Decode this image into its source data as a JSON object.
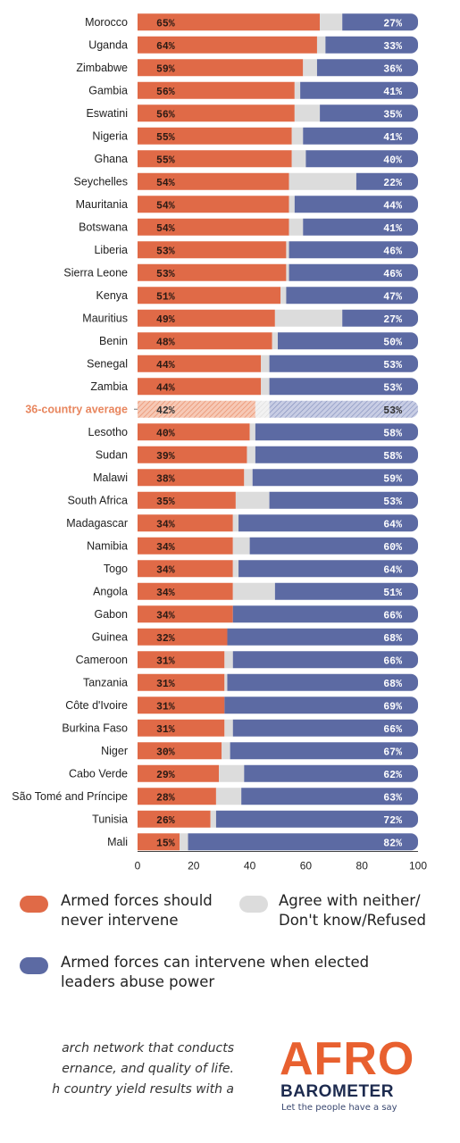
{
  "colors": {
    "never": "#e06a47",
    "neither": "#dcdcdc",
    "can": "#5c6aa3",
    "average_label": "#e8865e",
    "text": "#222222"
  },
  "chart_data": {
    "type": "bar",
    "orientation": "horizontal",
    "stacked": true,
    "xlim": [
      0,
      100
    ],
    "xticks": [
      0,
      20,
      40,
      60,
      80,
      100
    ],
    "categories": [
      "Morocco",
      "Uganda",
      "Zimbabwe",
      "Gambia",
      "Eswatini",
      "Nigeria",
      "Ghana",
      "Seychelles",
      "Mauritania",
      "Botswana",
      "Liberia",
      "Sierra Leone",
      "Kenya",
      "Mauritius",
      "Benin",
      "Senegal",
      "Zambia",
      "36-country average",
      "Lesotho",
      "Sudan",
      "Malawi",
      "South Africa",
      "Madagascar",
      "Namibia",
      "Togo",
      "Angola",
      "Gabon",
      "Guinea",
      "Cameroon",
      "Tanzania",
      "Côte d'Ivoire",
      "Burkina Faso",
      "Niger",
      "Cabo Verde",
      "São Tomé and Príncipe",
      "Tunisia",
      "Mali"
    ],
    "highlight_category": "36-country average",
    "series": [
      {
        "name": "Armed forces should never intervene",
        "color": "#e06a47",
        "values": [
          65,
          64,
          59,
          56,
          56,
          55,
          55,
          54,
          54,
          54,
          53,
          53,
          51,
          49,
          48,
          44,
          44,
          42,
          40,
          39,
          38,
          35,
          34,
          34,
          34,
          34,
          34,
          32,
          31,
          31,
          31,
          31,
          30,
          29,
          28,
          26,
          15
        ]
      },
      {
        "name": "Agree with neither/ Don't know/Refused",
        "color": "#dcdcdc",
        "values": [
          8,
          3,
          5,
          2,
          9,
          4,
          5,
          24,
          2,
          5,
          1,
          1,
          2,
          24,
          2,
          3,
          3,
          5,
          2,
          3,
          3,
          12,
          2,
          6,
          2,
          15,
          0,
          0,
          3,
          1,
          0,
          3,
          3,
          9,
          9,
          2,
          3
        ]
      },
      {
        "name": "Armed forces can intervene when elected leaders abuse power",
        "color": "#5c6aa3",
        "values": [
          27,
          33,
          36,
          41,
          35,
          41,
          40,
          22,
          44,
          41,
          46,
          46,
          47,
          27,
          50,
          53,
          53,
          53,
          58,
          58,
          59,
          53,
          64,
          60,
          64,
          51,
          66,
          68,
          66,
          68,
          69,
          66,
          67,
          62,
          63,
          72,
          82
        ]
      }
    ],
    "legend": [
      {
        "label_lines": [
          "Armed forces should",
          "never intervene"
        ],
        "color": "#e06a47"
      },
      {
        "label_lines": [
          "Agree with neither/",
          "Don't know/Refused"
        ],
        "color": "#dcdcdc"
      },
      {
        "label_lines": [
          "Armed forces can intervene when elected",
          "leaders abuse power"
        ],
        "color": "#5c6aa3"
      }
    ]
  },
  "footer": {
    "lines": [
      "arch network that conducts",
      "ernance, and quality of life.",
      "h country yield results with a"
    ]
  },
  "logo": {
    "brand_top": "AFRO",
    "brand_bottom": "BAROMETER",
    "tagline": "Let the people have a say"
  }
}
